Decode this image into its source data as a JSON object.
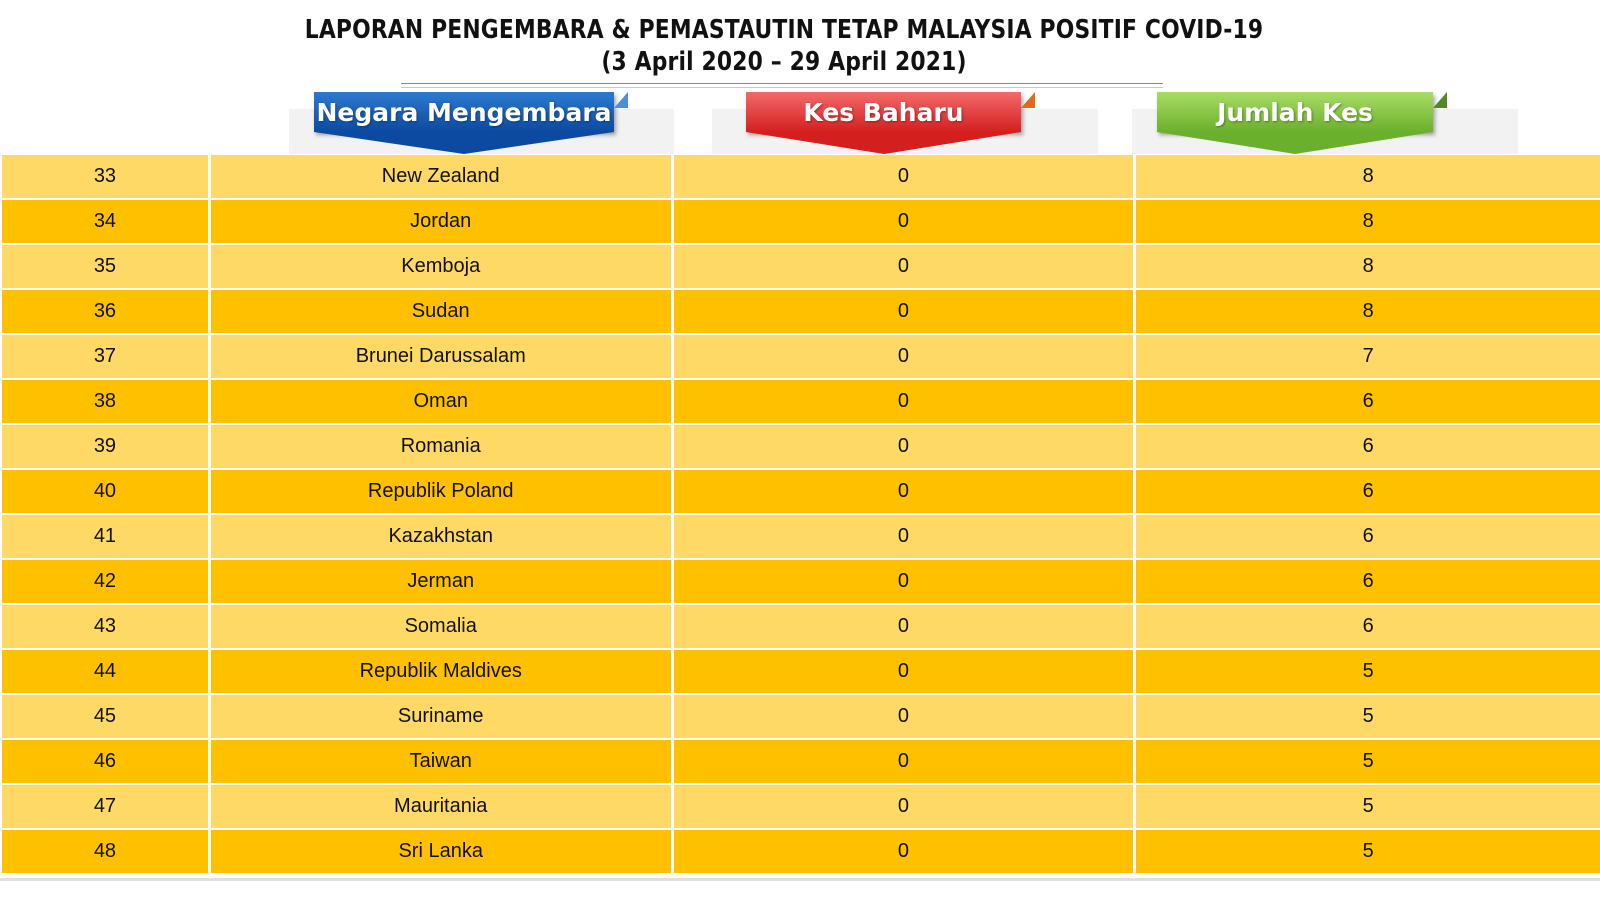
{
  "header": {
    "title_line1": "LAPORAN PENGEMBARA & PEMASTAUTIN TETAP MALAYSIA POSITIF COVID-19",
    "title_line2": "(3 April 2020 – 29 April 2021)"
  },
  "columns": {
    "country": "Negara Mengembara",
    "new_cases": "Kes Baharu",
    "total_cases": "Jumlah Kes"
  },
  "colors": {
    "row_light": "#ffd966",
    "row_dark": "#ffc000",
    "banner_blue": "#0b4aa0",
    "banner_red": "#d41f1f",
    "banner_green": "#6bb02c"
  },
  "rows": [
    {
      "no": "33",
      "country": "New Zealand",
      "new": "0",
      "total": "8"
    },
    {
      "no": "34",
      "country": "Jordan",
      "new": "0",
      "total": "8"
    },
    {
      "no": "35",
      "country": "Kemboja",
      "new": "0",
      "total": "8"
    },
    {
      "no": "36",
      "country": "Sudan",
      "new": "0",
      "total": "8"
    },
    {
      "no": "37",
      "country": "Brunei Darussalam",
      "new": "0",
      "total": "7"
    },
    {
      "no": "38",
      "country": "Oman",
      "new": "0",
      "total": "6"
    },
    {
      "no": "39",
      "country": "Romania",
      "new": "0",
      "total": "6"
    },
    {
      "no": "40",
      "country": "Republik Poland",
      "new": "0",
      "total": "6"
    },
    {
      "no": "41",
      "country": "Kazakhstan",
      "new": "0",
      "total": "6"
    },
    {
      "no": "42",
      "country": "Jerman",
      "new": "0",
      "total": "6"
    },
    {
      "no": "43",
      "country": "Somalia",
      "new": "0",
      "total": "6"
    },
    {
      "no": "44",
      "country": "Republik Maldives",
      "new": "0",
      "total": "5"
    },
    {
      "no": "45",
      "country": "Suriname",
      "new": "0",
      "total": "5"
    },
    {
      "no": "46",
      "country": "Taiwan",
      "new": "0",
      "total": "5"
    },
    {
      "no": "47",
      "country": "Mauritania",
      "new": "0",
      "total": "5"
    },
    {
      "no": "48",
      "country": "Sri Lanka",
      "new": "0",
      "total": "5"
    }
  ]
}
